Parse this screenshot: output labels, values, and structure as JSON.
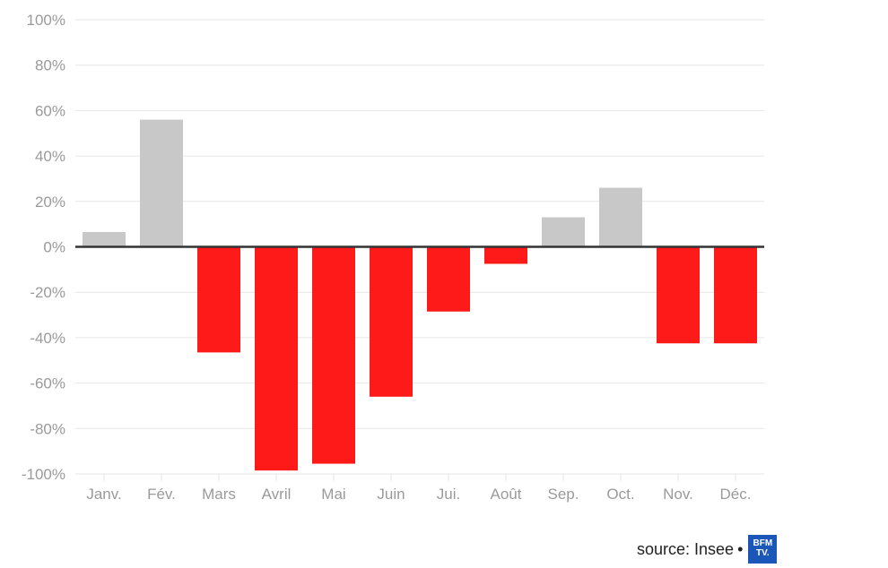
{
  "chart_data": {
    "type": "bar",
    "categories": [
      "Janv.",
      "Fév.",
      "Mars",
      "Avril",
      "Mai",
      "Juin",
      "Jui.",
      "Août",
      "Sep.",
      "Oct.",
      "Nov.",
      "Déc."
    ],
    "values": [
      6.5,
      56,
      -46.5,
      -98.5,
      -95.5,
      -66,
      -28.5,
      -7.5,
      13,
      26,
      -42.5,
      -42.5
    ],
    "ylim": [
      -100,
      100
    ],
    "yticks": [
      "100%",
      "80%",
      "60%",
      "40%",
      "20%",
      "0%",
      "-20%",
      "-40%",
      "-60%",
      "-80%",
      "-100%"
    ],
    "grid": true,
    "colors": {
      "positive": "#c8c8c8",
      "negative": "#ff1a1a",
      "zero_line": "#333333",
      "grid": "#e6e6e6"
    }
  },
  "footer": {
    "source": "source: Insee",
    "separator": "•",
    "logo_text": "BFM TV."
  }
}
